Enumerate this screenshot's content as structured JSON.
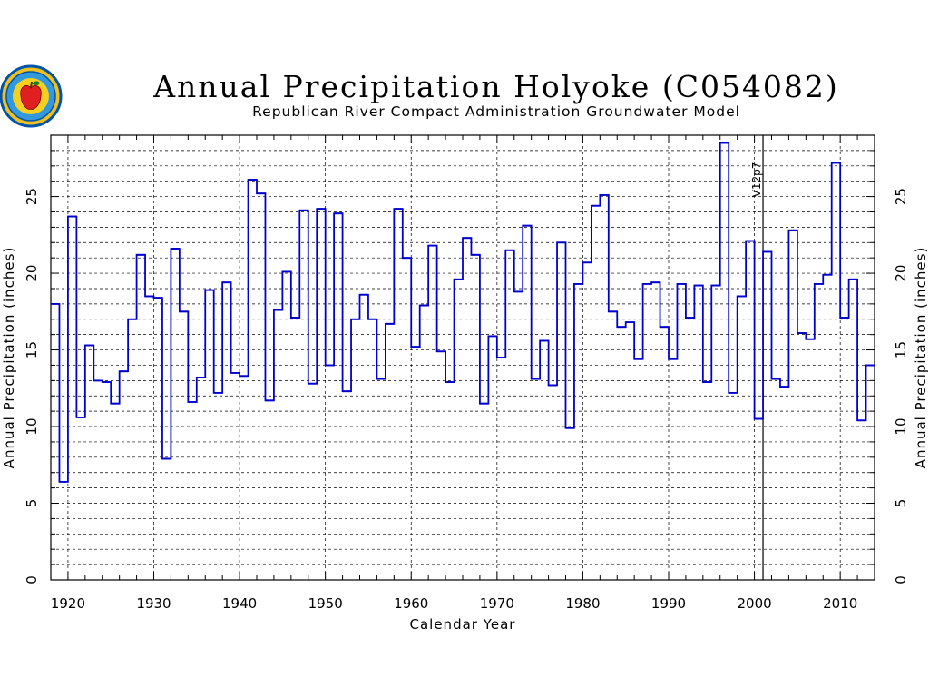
{
  "chart_data": {
    "type": "line",
    "step": true,
    "title": "Annual Precipitation Holyoke (C054082)",
    "subtitle": "Republican River Compact Administration Groundwater Model",
    "xlabel": "Calendar Year",
    "ylabel": "Annual Precipitation (inches)",
    "xlim": [
      1918,
      2014
    ],
    "ylim": [
      0,
      29
    ],
    "x_ticks": [
      1920,
      1930,
      1940,
      1950,
      1960,
      1970,
      1980,
      1990,
      2000,
      2010
    ],
    "y_ticks": [
      0,
      5,
      10,
      15,
      20,
      25
    ],
    "grid": true,
    "line_color": "#0000cc",
    "annotation": {
      "x": 2001,
      "label": "V12p7"
    },
    "x": [
      1918,
      1919,
      1920,
      1921,
      1922,
      1923,
      1924,
      1925,
      1926,
      1927,
      1928,
      1929,
      1930,
      1931,
      1932,
      1933,
      1934,
      1935,
      1936,
      1937,
      1938,
      1939,
      1940,
      1941,
      1942,
      1943,
      1944,
      1945,
      1946,
      1947,
      1948,
      1949,
      1950,
      1951,
      1952,
      1953,
      1954,
      1955,
      1956,
      1957,
      1958,
      1959,
      1960,
      1961,
      1962,
      1963,
      1964,
      1965,
      1966,
      1967,
      1968,
      1969,
      1970,
      1971,
      1972,
      1973,
      1974,
      1975,
      1976,
      1977,
      1978,
      1979,
      1980,
      1981,
      1982,
      1983,
      1984,
      1985,
      1986,
      1987,
      1988,
      1989,
      1990,
      1991,
      1992,
      1993,
      1994,
      1995,
      1996,
      1997,
      1998,
      1999,
      2000,
      2001,
      2002,
      2003,
      2004,
      2005,
      2006,
      2007,
      2008,
      2009,
      2010,
      2011,
      2012,
      2013
    ],
    "y": [
      18.0,
      6.4,
      23.7,
      10.6,
      15.3,
      13.0,
      12.9,
      11.5,
      13.6,
      17.0,
      21.2,
      18.5,
      18.4,
      7.9,
      21.6,
      17.5,
      11.6,
      13.2,
      18.9,
      12.2,
      19.4,
      13.5,
      13.3,
      26.1,
      25.2,
      11.7,
      17.6,
      20.1,
      17.1,
      24.1,
      12.8,
      24.2,
      14.0,
      23.9,
      12.3,
      17.0,
      18.6,
      17.0,
      13.1,
      16.7,
      24.2,
      21.0,
      15.2,
      17.9,
      21.8,
      14.9,
      12.9,
      19.6,
      22.3,
      21.2,
      11.5,
      15.9,
      14.5,
      21.5,
      18.8,
      23.1,
      13.1,
      15.6,
      12.7,
      22.0,
      9.9,
      19.3,
      20.7,
      24.4,
      25.1,
      17.5,
      16.5,
      16.8,
      14.4,
      19.3,
      19.4,
      16.5,
      14.4,
      19.3,
      17.1,
      19.2,
      12.9,
      19.2,
      28.5,
      12.2,
      18.5,
      22.1,
      10.5,
      21.4,
      13.1,
      12.6,
      22.8,
      16.1,
      15.7,
      19.3,
      19.9,
      27.2,
      17.1,
      19.6,
      10.4,
      14.0
    ]
  },
  "logo": {
    "name": "rrca-apple-seal"
  }
}
